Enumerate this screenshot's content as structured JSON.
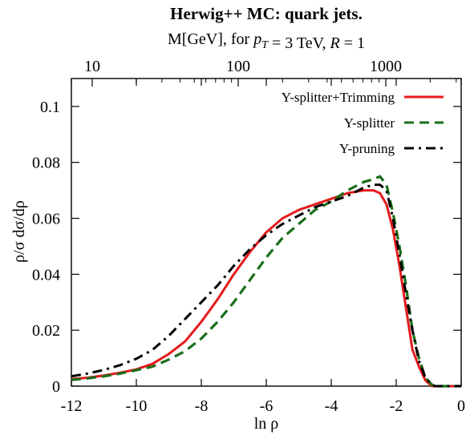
{
  "chart_data": {
    "type": "line",
    "title": "Herwig++ MC: quark jets.",
    "subtitle": "M[GeV], for p_T = 3 TeV, R = 1",
    "xlabel": "ln ρ",
    "ylabel": "ρ/σ dσ/dρ",
    "xlim": [
      -12,
      0
    ],
    "ylim": [
      0,
      0.11
    ],
    "x_ticks": [
      -12,
      -10,
      -8,
      -6,
      -4,
      -2,
      0
    ],
    "y_ticks": [
      0,
      0.02,
      0.04,
      0.06,
      0.08,
      0.1
    ],
    "top_axis": {
      "label_values": [
        "10",
        "100",
        "1000"
      ],
      "mass_values": [
        10,
        100,
        1000
      ]
    },
    "legend": {
      "placement": "top-right"
    },
    "grid": false,
    "series": [
      {
        "name": "Y-splitter+Trimming",
        "color": "#e31a1c",
        "dash": "solid",
        "x": [
          -12,
          -11.5,
          -11,
          -10.5,
          -10,
          -9.5,
          -9,
          -8.5,
          -8,
          -7.5,
          -7,
          -6.5,
          -6,
          -5.5,
          -5,
          -4.5,
          -4,
          -3.5,
          -3,
          -2.7,
          -2.5,
          -2.3,
          -2.1,
          -1.9,
          -1.7,
          -1.5,
          -1.3,
          -1.1,
          -0.9,
          -0.8,
          -0.6,
          -0.4,
          -0.2,
          0
        ],
        "y": [
          0.0025,
          0.003,
          0.0038,
          0.0048,
          0.006,
          0.008,
          0.0115,
          0.016,
          0.023,
          0.031,
          0.04,
          0.048,
          0.055,
          0.06,
          0.063,
          0.065,
          0.067,
          0.069,
          0.07,
          0.07,
          0.069,
          0.065,
          0.056,
          0.043,
          0.028,
          0.013,
          0.007,
          0.002,
          0,
          0,
          0,
          0,
          0,
          0
        ]
      },
      {
        "name": "Y-splitter",
        "color": "#1a6e1a",
        "dash": "dashed",
        "x": [
          -12,
          -11.5,
          -11,
          -10.5,
          -10,
          -9.5,
          -9,
          -8.5,
          -8,
          -7.5,
          -7,
          -6.5,
          -6,
          -5.5,
          -5,
          -4.5,
          -4,
          -3.5,
          -3,
          -2.7,
          -2.5,
          -2.3,
          -2.1,
          -1.9,
          -1.7,
          -1.5,
          -1.3,
          -1.1,
          -0.9,
          -0.8,
          -0.6,
          -0.4,
          -0.2,
          0
        ],
        "y": [
          0.0022,
          0.0028,
          0.0035,
          0.0045,
          0.0057,
          0.007,
          0.0095,
          0.0125,
          0.017,
          0.023,
          0.03,
          0.038,
          0.046,
          0.053,
          0.058,
          0.063,
          0.066,
          0.07,
          0.073,
          0.074,
          0.075,
          0.072,
          0.062,
          0.05,
          0.036,
          0.02,
          0.01,
          0.003,
          0.0005,
          0,
          0,
          0,
          0,
          0
        ]
      },
      {
        "name": "Y-pruning",
        "color": "#000000",
        "dash": "dashdot",
        "x": [
          -12,
          -11.5,
          -11,
          -10.5,
          -10,
          -9.5,
          -9,
          -8.5,
          -8,
          -7.5,
          -7,
          -6.5,
          -6,
          -5.5,
          -5,
          -4.5,
          -4,
          -3.5,
          -3,
          -2.7,
          -2.5,
          -2.3,
          -2.1,
          -1.9,
          -1.7,
          -1.5,
          -1.3,
          -1.1,
          -0.9,
          -0.8,
          -0.6,
          -0.4,
          -0.2,
          0
        ],
        "y": [
          0.0035,
          0.0045,
          0.0058,
          0.0075,
          0.0098,
          0.013,
          0.018,
          0.024,
          0.03,
          0.036,
          0.043,
          0.049,
          0.054,
          0.058,
          0.061,
          0.064,
          0.066,
          0.068,
          0.071,
          0.072,
          0.072,
          0.07,
          0.06,
          0.047,
          0.033,
          0.02,
          0.009,
          0.003,
          0.0005,
          0,
          0,
          0,
          0,
          0
        ]
      }
    ]
  }
}
